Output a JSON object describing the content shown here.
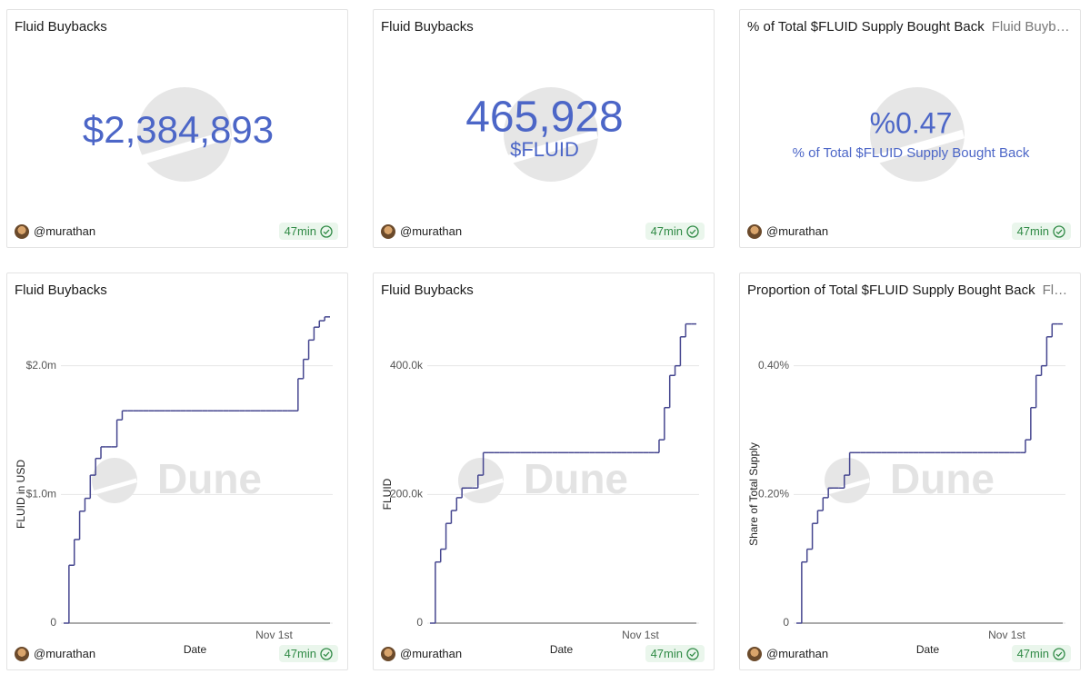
{
  "footer": {
    "author": "@murathan",
    "age": "47min"
  },
  "watermark": "Dune",
  "counters": [
    {
      "title": "Fluid Buybacks",
      "value": "$2,384,893"
    },
    {
      "title": "Fluid Buybacks",
      "value": "465,928",
      "subtitle": "$FLUID"
    },
    {
      "title": "% of Total $FLUID Supply Bought Back",
      "tab": "Fluid Buybacks",
      "value": "%0.47",
      "subtitle": "% of Total $FLUID Supply Bought Back"
    }
  ],
  "chart_data": [
    {
      "type": "line",
      "title": "Fluid Buybacks",
      "color": "#45468f",
      "grid": true,
      "x_label": "Date",
      "y_label": "FLUID in USD",
      "categories": [
        null,
        null,
        null,
        null,
        null,
        null,
        null,
        null,
        null,
        null,
        null,
        null,
        null,
        null,
        null,
        null,
        null,
        null,
        null,
        null,
        null,
        null,
        null,
        null,
        null,
        null,
        null,
        null,
        null,
        null,
        null,
        null,
        null,
        null,
        null,
        null,
        null,
        null,
        null,
        "Nov 1st",
        null,
        null,
        null,
        null,
        null,
        null,
        null,
        null,
        null,
        null
      ],
      "values": [
        0,
        450000,
        650000,
        870000,
        970000,
        1150000,
        1280000,
        1370000,
        1370000,
        1370000,
        1580000,
        1650000,
        1650000,
        1650000,
        1650000,
        1650000,
        1650000,
        1650000,
        1650000,
        1650000,
        1650000,
        1650000,
        1650000,
        1650000,
        1650000,
        1650000,
        1650000,
        1650000,
        1650000,
        1650000,
        1650000,
        1650000,
        1650000,
        1650000,
        1650000,
        1650000,
        1650000,
        1650000,
        1650000,
        1650000,
        1650000,
        1650000,
        1650000,
        1650000,
        1900000,
        2050000,
        2200000,
        2300000,
        2350000,
        2380000
      ],
      "ylim": [
        0,
        2400000
      ],
      "yticks": [
        0,
        {
          "value": 1000000,
          "label": "$1.0m"
        },
        {
          "value": 2000000,
          "label": "$2.0m"
        }
      ]
    },
    {
      "type": "line",
      "title": "Fluid Buybacks",
      "color": "#45468f",
      "grid": true,
      "x_label": "Date",
      "y_label": "FLUID",
      "categories": [
        null,
        null,
        null,
        null,
        null,
        null,
        null,
        null,
        null,
        null,
        null,
        null,
        null,
        null,
        null,
        null,
        null,
        null,
        null,
        null,
        null,
        null,
        null,
        null,
        null,
        null,
        null,
        null,
        null,
        null,
        null,
        null,
        null,
        null,
        null,
        null,
        null,
        null,
        null,
        "Nov 1st",
        null,
        null,
        null,
        null,
        null,
        null,
        null,
        null,
        null,
        null
      ],
      "values": [
        0,
        95000,
        115000,
        155000,
        175000,
        195000,
        210000,
        210000,
        210000,
        230000,
        265000,
        265000,
        265000,
        265000,
        265000,
        265000,
        265000,
        265000,
        265000,
        265000,
        265000,
        265000,
        265000,
        265000,
        265000,
        265000,
        265000,
        265000,
        265000,
        265000,
        265000,
        265000,
        265000,
        265000,
        265000,
        265000,
        265000,
        265000,
        265000,
        265000,
        265000,
        265000,
        265000,
        285000,
        335000,
        385000,
        400000,
        445000,
        465000,
        465000
      ],
      "ylim": [
        0,
        480000
      ],
      "yticks": [
        0,
        {
          "value": 200000,
          "label": "200.0k"
        },
        {
          "value": 400000,
          "label": "400.0k"
        }
      ]
    },
    {
      "type": "line",
      "title": "Proportion of Total $FLUID Supply Bought Back",
      "tab": "Fluid Buybacks",
      "color": "#45468f",
      "grid": true,
      "x_label": "Date",
      "y_label": "Share of Total Supply",
      "categories": [
        null,
        null,
        null,
        null,
        null,
        null,
        null,
        null,
        null,
        null,
        null,
        null,
        null,
        null,
        null,
        null,
        null,
        null,
        null,
        null,
        null,
        null,
        null,
        null,
        null,
        null,
        null,
        null,
        null,
        null,
        null,
        null,
        null,
        null,
        null,
        null,
        null,
        null,
        null,
        "Nov 1st",
        null,
        null,
        null,
        null,
        null,
        null,
        null,
        null,
        null,
        null
      ],
      "values": [
        0,
        0.095,
        0.115,
        0.155,
        0.175,
        0.195,
        0.21,
        0.21,
        0.21,
        0.23,
        0.265,
        0.265,
        0.265,
        0.265,
        0.265,
        0.265,
        0.265,
        0.265,
        0.265,
        0.265,
        0.265,
        0.265,
        0.265,
        0.265,
        0.265,
        0.265,
        0.265,
        0.265,
        0.265,
        0.265,
        0.265,
        0.265,
        0.265,
        0.265,
        0.265,
        0.265,
        0.265,
        0.265,
        0.265,
        0.265,
        0.265,
        0.265,
        0.265,
        0.285,
        0.335,
        0.385,
        0.4,
        0.445,
        0.465,
        0.465
      ],
      "ylim": [
        0,
        0.48
      ],
      "yticks": [
        0,
        {
          "value": 0.2,
          "label": "0.20%"
        },
        {
          "value": 0.4,
          "label": "0.40%"
        }
      ]
    }
  ]
}
